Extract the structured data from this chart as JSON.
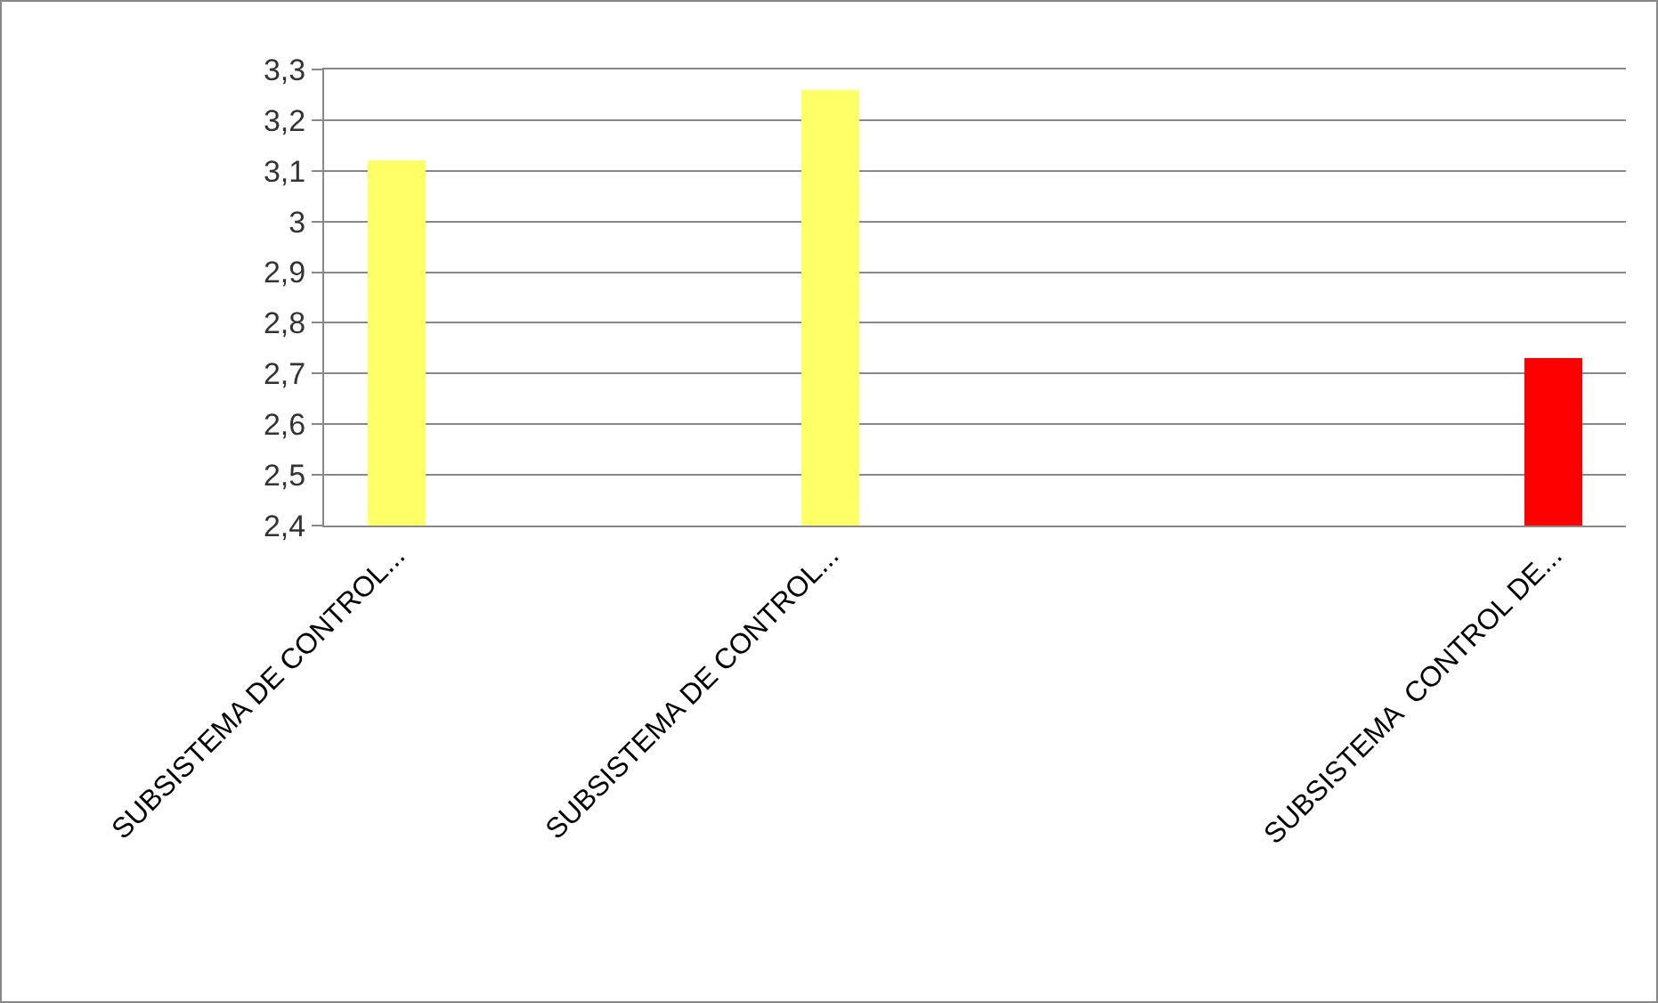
{
  "chart_data": {
    "type": "bar",
    "categories": [
      "SUBSISTEMA DE CONTROL...",
      null,
      null,
      "SUBSISTEMA DE CONTROL...",
      null,
      null,
      null,
      null,
      "SUBSISTEMA  CONTROL DE..."
    ],
    "values": [
      3.12,
      null,
      null,
      3.26,
      null,
      null,
      null,
      null,
      2.73
    ],
    "colors": [
      "#ffff66",
      "#ffff66",
      "#ffff66",
      "#ffff66",
      "#ffff66",
      "#ffff66",
      "#ffff66",
      "#ffff66",
      "#ff0000"
    ],
    "ylim": [
      2.4,
      3.3
    ],
    "yticks": [
      {
        "value": 2.4,
        "label": "2,4"
      },
      {
        "value": 2.5,
        "label": "2,5"
      },
      {
        "value": 2.6,
        "label": "2,6"
      },
      {
        "value": 2.7,
        "label": "2,7"
      },
      {
        "value": 2.8,
        "label": "2,8"
      },
      {
        "value": 2.9,
        "label": "2,9"
      },
      3,
      {
        "value": 3.1,
        "label": "3,1"
      },
      {
        "value": 3.2,
        "label": "3,2"
      },
      {
        "value": 3.3,
        "label": "3,3"
      }
    ],
    "grid": "y"
  }
}
